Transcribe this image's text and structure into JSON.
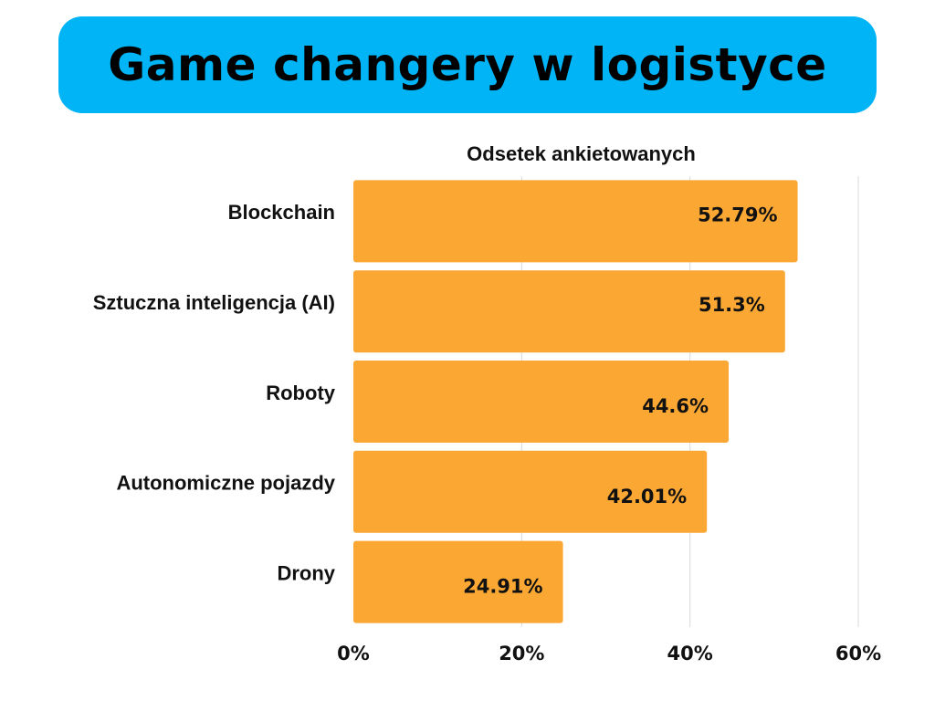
{
  "title": "Game changery w logistyce",
  "colors": {
    "banner": "#00b4f5",
    "bar": "#fba733",
    "grid": "#d9d9d9",
    "text": "#111111"
  },
  "chart_data": {
    "type": "bar",
    "orientation": "horizontal",
    "title": "Game changery w logistyce",
    "xlabel": "Odsetek ankietowanych",
    "xlabel_position": "top",
    "ylabel": "",
    "categories": [
      "Blockchain",
      "Sztuczna inteligencja (AI)",
      "Roboty",
      "Autonomiczne pojazdy",
      "Drony"
    ],
    "values": [
      52.79,
      51.3,
      44.6,
      42.01,
      24.91
    ],
    "value_labels": [
      "52.79%",
      "51.3%",
      "44.6%",
      "42.01%",
      "24.91%"
    ],
    "xlim": [
      0,
      60
    ],
    "ticks": [
      0,
      20,
      40,
      60
    ],
    "tick_labels": [
      "0%",
      "20%",
      "40%",
      "60%"
    ],
    "grid": true,
    "legend": "none"
  }
}
